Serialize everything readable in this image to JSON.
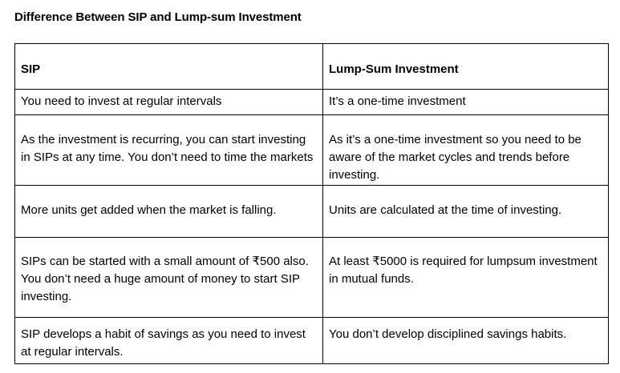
{
  "title": "Difference Between SIP and Lump-sum Investment",
  "table": {
    "headers": [
      "SIP",
      "Lump-Sum Investment"
    ],
    "rows": [
      [
        "You need to invest at regular intervals",
        "It’s a one-time investment"
      ],
      [
        "As the investment is recurring, you can start investing in SIPs at any time. You don’t need to time the markets",
        "As it’s a one-time investment so you need to be aware of the market cycles and trends before investing."
      ],
      [
        "More units get added when the market is falling.",
        "Units are calculated at the time of investing."
      ],
      [
        "SIPs can be started with a small amount of ₹500 also. You don’t need a huge amount of money to start SIP investing.",
        "At least ₹5000 is required for lumpsum investment in mutual funds."
      ],
      [
        "SIP develops a habit of savings as you need to invest at regular intervals.",
        "You don’t develop disciplined savings habits."
      ]
    ]
  }
}
